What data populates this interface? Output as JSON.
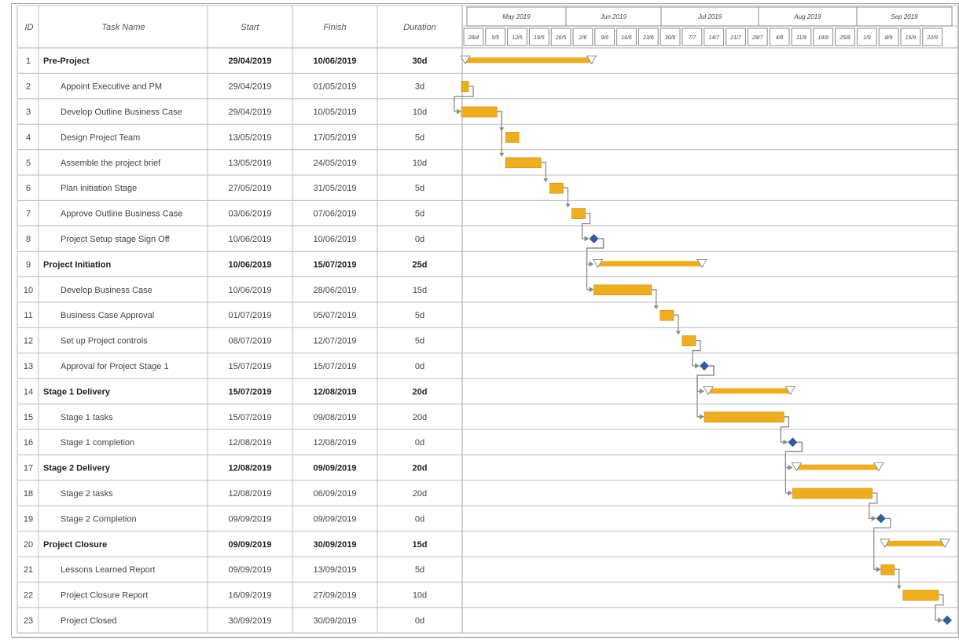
{
  "headers": {
    "id": "ID",
    "name": "Task Name",
    "start": "Start",
    "finish": "Finish",
    "duration": "Duration"
  },
  "timeline": {
    "months": [
      "May 2019",
      "Jun 2019",
      "Jul 2019",
      "Aug 2019",
      "Sep 2019"
    ],
    "weeks": [
      "28/4",
      "5/5",
      "12/5",
      "19/5",
      "26/5",
      "2/6",
      "9/6",
      "16/6",
      "23/6",
      "30/6",
      "7/7",
      "14/7",
      "21/7",
      "28/7",
      "4/8",
      "11/8",
      "18/8",
      "25/8",
      "1/9",
      "8/9",
      "15/9",
      "22/9"
    ]
  },
  "colors": {
    "task_bar": "#f0ad1e",
    "milestone": "#2f5f98",
    "connector": "#8c8c8c",
    "grid": "#bdbdbd"
  },
  "chart_data": {
    "type": "gantt",
    "tasks": [
      {
        "id": "1",
        "name": "Pre-Project",
        "start": "29/04/2019",
        "finish": "10/06/2019",
        "duration": "30d",
        "summary": true
      },
      {
        "id": "2",
        "name": "Appoint Executive and PM",
        "start": "29/04/2019",
        "finish": "01/05/2019",
        "duration": "3d"
      },
      {
        "id": "3",
        "name": "Develop Outline Business Case",
        "start": "29/04/2019",
        "finish": "10/05/2019",
        "duration": "10d"
      },
      {
        "id": "4",
        "name": "Design Project Team",
        "start": "13/05/2019",
        "finish": "17/05/2019",
        "duration": "5d"
      },
      {
        "id": "5",
        "name": "Assemble the project brief",
        "start": "13/05/2019",
        "finish": "24/05/2019",
        "duration": "10d"
      },
      {
        "id": "6",
        "name": "Plan initiation Stage",
        "start": "27/05/2019",
        "finish": "31/05/2019",
        "duration": "5d"
      },
      {
        "id": "7",
        "name": "Approve Outline Business Case",
        "start": "03/06/2019",
        "finish": "07/06/2019",
        "duration": "5d"
      },
      {
        "id": "8",
        "name": "Project Setup stage Sign Off",
        "start": "10/06/2019",
        "finish": "10/06/2019",
        "duration": "0d",
        "milestone": true
      },
      {
        "id": "9",
        "name": "Project Initiation",
        "start": "10/06/2019",
        "finish": "15/07/2019",
        "duration": "25d",
        "summary": true
      },
      {
        "id": "10",
        "name": "Develop Business Case",
        "start": "10/06/2019",
        "finish": "28/06/2019",
        "duration": "15d"
      },
      {
        "id": "11",
        "name": "Business Case Approval",
        "start": "01/07/2019",
        "finish": "05/07/2019",
        "duration": "5d"
      },
      {
        "id": "12",
        "name": "Set up Project controls",
        "start": "08/07/2019",
        "finish": "12/07/2019",
        "duration": "5d"
      },
      {
        "id": "13",
        "name": "Approval for Project Stage 1",
        "start": "15/07/2019",
        "finish": "15/07/2019",
        "duration": "0d",
        "milestone": true
      },
      {
        "id": "14",
        "name": "Stage 1 Delivery",
        "start": "15/07/2019",
        "finish": "12/08/2019",
        "duration": "20d",
        "summary": true
      },
      {
        "id": "15",
        "name": "Stage 1 tasks",
        "start": "15/07/2019",
        "finish": "09/08/2019",
        "duration": "20d"
      },
      {
        "id": "16",
        "name": "Stage 1 completion",
        "start": "12/08/2019",
        "finish": "12/08/2019",
        "duration": "0d",
        "milestone": true
      },
      {
        "id": "17",
        "name": "Stage 2 Delivery",
        "start": "12/08/2019",
        "finish": "09/09/2019",
        "duration": "20d",
        "summary": true
      },
      {
        "id": "18",
        "name": "Stage 2 tasks",
        "start": "12/08/2019",
        "finish": "06/09/2019",
        "duration": "20d"
      },
      {
        "id": "19",
        "name": "Stage 2 Completion",
        "start": "09/09/2019",
        "finish": "09/09/2019",
        "duration": "0d",
        "milestone": true
      },
      {
        "id": "20",
        "name": "Project Closure",
        "start": "09/09/2019",
        "finish": "30/09/2019",
        "duration": "15d",
        "summary": true
      },
      {
        "id": "21",
        "name": "Lessons Learned Report",
        "start": "09/09/2019",
        "finish": "13/09/2019",
        "duration": "5d"
      },
      {
        "id": "22",
        "name": "Project Closure Report",
        "start": "16/09/2019",
        "finish": "27/09/2019",
        "duration": "10d"
      },
      {
        "id": "23",
        "name": "Project Closed",
        "start": "30/09/2019",
        "finish": "30/09/2019",
        "duration": "0d",
        "milestone": true
      }
    ],
    "links": [
      [
        "2",
        "3"
      ],
      [
        "3",
        "4"
      ],
      [
        "3",
        "5"
      ],
      [
        "5",
        "6"
      ],
      [
        "6",
        "7"
      ],
      [
        "7",
        "8"
      ],
      [
        "8",
        "9"
      ],
      [
        "8",
        "10"
      ],
      [
        "10",
        "11"
      ],
      [
        "11",
        "12"
      ],
      [
        "12",
        "13"
      ],
      [
        "13",
        "14"
      ],
      [
        "13",
        "15"
      ],
      [
        "15",
        "16"
      ],
      [
        "16",
        "17"
      ],
      [
        "16",
        "18"
      ],
      [
        "18",
        "19"
      ],
      [
        "19",
        "21"
      ],
      [
        "21",
        "22"
      ],
      [
        "22",
        "23"
      ]
    ]
  }
}
